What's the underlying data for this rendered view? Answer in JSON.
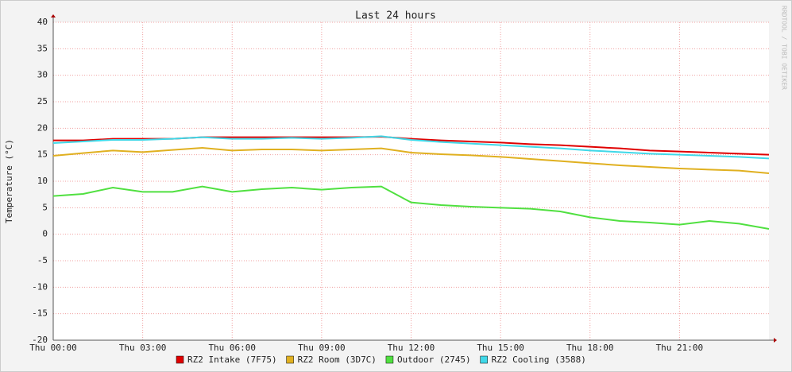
{
  "chart_data": {
    "type": "line",
    "title": "Last 24 hours",
    "y_label": "Temperature (°C)",
    "watermark": "RRDTOOL / TOBI OETIKER",
    "x": [
      0,
      1,
      2,
      3,
      4,
      5,
      6,
      7,
      8,
      9,
      10,
      11,
      12,
      13,
      14,
      15,
      16,
      17,
      18,
      19,
      20,
      21,
      22,
      23,
      24
    ],
    "xlim": [
      0,
      24
    ],
    "xticks": [
      {
        "value": 0,
        "label": "Thu 00:00"
      },
      {
        "value": 3,
        "label": "Thu 03:00"
      },
      {
        "value": 6,
        "label": "Thu 06:00"
      },
      {
        "value": 9,
        "label": "Thu 09:00"
      },
      {
        "value": 12,
        "label": "Thu 12:00"
      },
      {
        "value": 15,
        "label": "Thu 15:00"
      },
      {
        "value": 18,
        "label": "Thu 18:00"
      },
      {
        "value": 21,
        "label": "Thu 21:00"
      }
    ],
    "ylim": [
      -20,
      40
    ],
    "yticks": [
      -20,
      -15,
      -10,
      -5,
      0,
      5,
      10,
      15,
      20,
      25,
      30,
      35,
      40
    ],
    "grid": true,
    "series": [
      {
        "name": "RZ2 Intake (7F75)",
        "color": "#e00000",
        "values": [
          17.7,
          17.7,
          18.0,
          18.0,
          18.0,
          18.3,
          18.3,
          18.3,
          18.3,
          18.3,
          18.3,
          18.4,
          18.0,
          17.7,
          17.5,
          17.3,
          17.0,
          16.8,
          16.5,
          16.2,
          15.8,
          15.6,
          15.4,
          15.2,
          15.0
        ]
      },
      {
        "name": "RZ2 Room (3D7C)",
        "color": "#e0b020",
        "values": [
          14.8,
          15.3,
          15.8,
          15.5,
          15.9,
          16.3,
          15.8,
          16.0,
          16.0,
          15.8,
          16.0,
          16.2,
          15.4,
          15.1,
          14.9,
          14.6,
          14.2,
          13.8,
          13.4,
          13.0,
          12.7,
          12.4,
          12.2,
          12.0,
          11.5
        ]
      },
      {
        "name": "Outdoor (2745)",
        "color": "#50e040",
        "values": [
          7.2,
          7.6,
          8.8,
          8.0,
          8.0,
          9.0,
          8.0,
          8.5,
          8.8,
          8.4,
          8.8,
          9.0,
          6.0,
          5.5,
          5.2,
          5.0,
          4.8,
          4.3,
          3.2,
          2.5,
          2.2,
          1.8,
          2.5,
          2.0,
          1.0
        ]
      },
      {
        "name": "RZ2 Cooling (3588)",
        "color": "#40d8e8",
        "values": [
          17.2,
          17.5,
          17.8,
          17.8,
          18.0,
          18.3,
          18.0,
          18.0,
          18.2,
          18.0,
          18.2,
          18.5,
          17.8,
          17.4,
          17.1,
          16.8,
          16.5,
          16.2,
          15.8,
          15.5,
          15.2,
          15.0,
          14.8,
          14.6,
          14.3
        ]
      }
    ]
  }
}
